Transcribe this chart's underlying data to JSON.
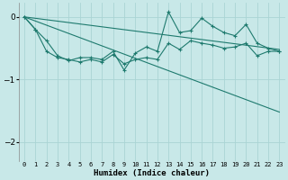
{
  "xlabel": "Humidex (Indice chaleur)",
  "background_color": "#c8e8e8",
  "grid_color": "#aad4d4",
  "line_color": "#1e7a6e",
  "x": [
    0,
    1,
    2,
    3,
    4,
    5,
    6,
    7,
    8,
    9,
    10,
    11,
    12,
    13,
    14,
    15,
    16,
    17,
    18,
    19,
    20,
    21,
    22,
    23
  ],
  "line1": [
    0.0,
    -0.2,
    -0.38,
    -0.62,
    -0.7,
    -0.65,
    -0.65,
    -0.68,
    -0.55,
    -0.85,
    -0.58,
    -0.48,
    -0.55,
    0.08,
    -0.25,
    -0.22,
    -0.02,
    -0.15,
    -0.25,
    -0.3,
    -0.12,
    -0.42,
    -0.5,
    -0.55
  ],
  "line2": [
    0.0,
    -0.2,
    -0.55,
    -0.65,
    -0.68,
    -0.72,
    -0.68,
    -0.72,
    -0.6,
    -0.75,
    -0.68,
    -0.65,
    -0.68,
    -0.42,
    -0.52,
    -0.38,
    -0.42,
    -0.45,
    -0.5,
    -0.48,
    -0.42,
    -0.62,
    -0.55,
    -0.55
  ],
  "line3_x": [
    0,
    23
  ],
  "line3_y": [
    0.0,
    -0.52
  ],
  "line4_x": [
    0,
    23
  ],
  "line4_y": [
    0.0,
    -1.52
  ],
  "ylim": [
    -2.3,
    0.22
  ],
  "xlim": [
    -0.5,
    23.5
  ],
  "yticks": [
    0,
    -1,
    -2
  ],
  "figsize": [
    3.2,
    2.0
  ],
  "dpi": 100
}
